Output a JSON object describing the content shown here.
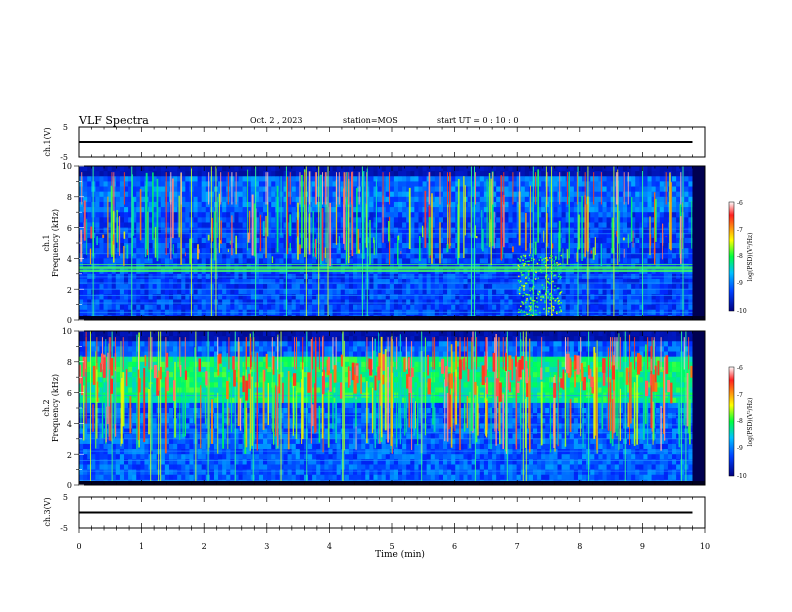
{
  "header": {
    "title": "VLF Spectra",
    "date": "Oct. 2 , 2023",
    "station": "station=MOS",
    "start": "start UT =  0 : 10 : 0"
  },
  "panels": {
    "ch1_voltage": {
      "label": "ch.1(V)",
      "ticks": [
        "5",
        "-5"
      ]
    },
    "ch1_spectrum": {
      "label_line1": "ch.1",
      "label_line2": "Frequency (kHz)",
      "ticks": [
        "10",
        "8",
        "6",
        "4",
        "2",
        "0"
      ]
    },
    "ch2_spectrum": {
      "label_line1": "ch.2",
      "label_line2": "Frequency (kHz)",
      "ticks": [
        "10",
        "8",
        "6",
        "4",
        "2",
        "0"
      ]
    },
    "ch3_voltage": {
      "label": "ch.3(V)",
      "ticks": [
        "5",
        "-5"
      ]
    }
  },
  "xaxis": {
    "label": "Time (min)",
    "ticks": [
      "0",
      "1",
      "2",
      "3",
      "4",
      "5",
      "6",
      "7",
      "8",
      "9",
      "10"
    ]
  },
  "colorbar": {
    "label": "log(PSD)(V²/Hz)",
    "ticks": [
      "-6",
      "-7",
      "-8",
      "-9",
      "-10"
    ],
    "colors": [
      "#ffffff",
      "#ff2020",
      "#ffff00",
      "#00ff40",
      "#00c0ff",
      "#0040ff",
      "#000080"
    ]
  },
  "chart_data": [
    {
      "type": "line",
      "name": "ch.1 voltage",
      "x": [
        0,
        9.8
      ],
      "y": [
        0,
        0
      ],
      "xlim": [
        0,
        10
      ],
      "ylim": [
        -5,
        5
      ],
      "ylabel": "ch.1(V)"
    },
    {
      "type": "heatmap",
      "name": "ch.1 spectrogram",
      "xlim": [
        0,
        10
      ],
      "ylim": [
        0,
        10
      ],
      "ylabel": "Frequency (kHz)",
      "zlim": [
        -10,
        -6
      ],
      "data_end_min": 9.8,
      "burst_interval_min": [
        7.0,
        7.7
      ]
    },
    {
      "type": "heatmap",
      "name": "ch.2 spectrogram",
      "xlim": [
        0,
        10
      ],
      "ylim": [
        0,
        10
      ],
      "ylabel": "Frequency (kHz)",
      "zlim": [
        -10,
        -6
      ],
      "data_end_min": 9.8
    },
    {
      "type": "line",
      "name": "ch.3 voltage",
      "x": [
        0,
        9.8
      ],
      "y": [
        0,
        0
      ],
      "xlim": [
        0,
        10
      ],
      "ylim": [
        -5,
        5
      ],
      "ylabel": "ch.3(V)"
    }
  ]
}
